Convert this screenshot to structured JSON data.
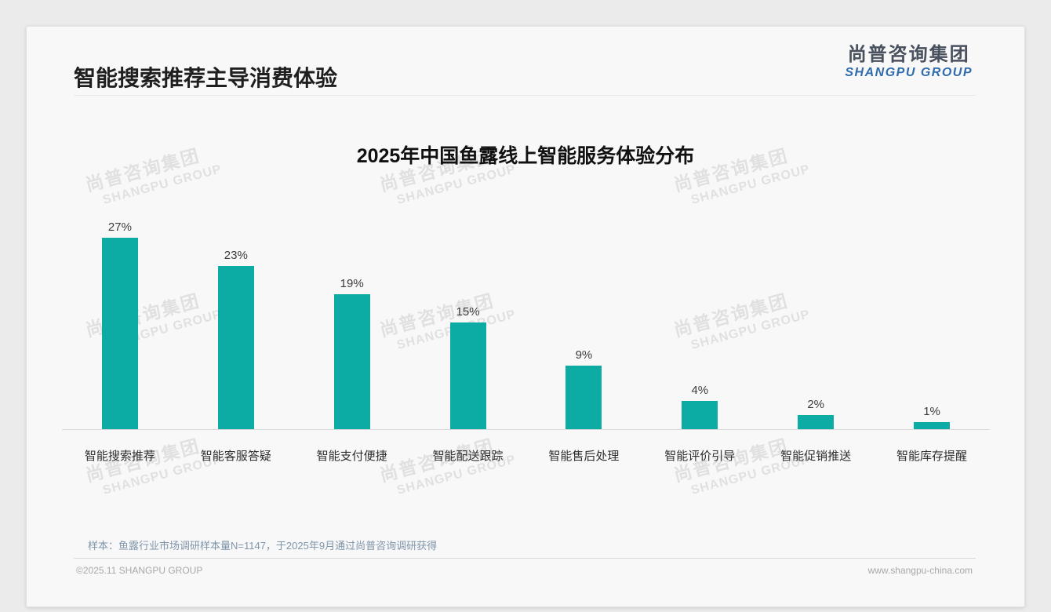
{
  "page": {
    "title": "智能搜索推荐主导消费体验",
    "logo": {
      "cn": "尚普咨询集团",
      "en": "SHANGPU GROUP"
    },
    "watermark": {
      "cn": "尚普咨询集团",
      "en": "SHANGPU GROUP"
    },
    "note": "样本：鱼露行业市场调研样本量N=1147，于2025年9月通过尚普咨询调研获得",
    "footer": {
      "left": "©2025.11 SHANGPU GROUP",
      "right": "www.shangpu-china.com"
    }
  },
  "chart_data": {
    "type": "bar",
    "title": "2025年中国鱼露线上智能服务体验分布",
    "categories": [
      "智能搜索推荐",
      "智能客服答疑",
      "智能支付便捷",
      "智能配送跟踪",
      "智能售后处理",
      "智能评价引导",
      "智能促销推送",
      "智能库存提醒"
    ],
    "values": [
      27,
      23,
      19,
      15,
      9,
      4,
      2,
      1
    ],
    "unit": "%",
    "value_labels": [
      "27%",
      "23%",
      "19%",
      "15%",
      "9%",
      "4%",
      "2%",
      "1%"
    ],
    "xlabel": "",
    "ylabel": "",
    "ylim": [
      0,
      30
    ],
    "grid": false,
    "legend": "none",
    "bar_color": "#0caca4"
  },
  "colors": {
    "accent_teal": "#0caca4",
    "logo_blue": "#2f6bad",
    "note_blue_gray": "#7f95aa",
    "title_black": "#1f1f1f"
  }
}
